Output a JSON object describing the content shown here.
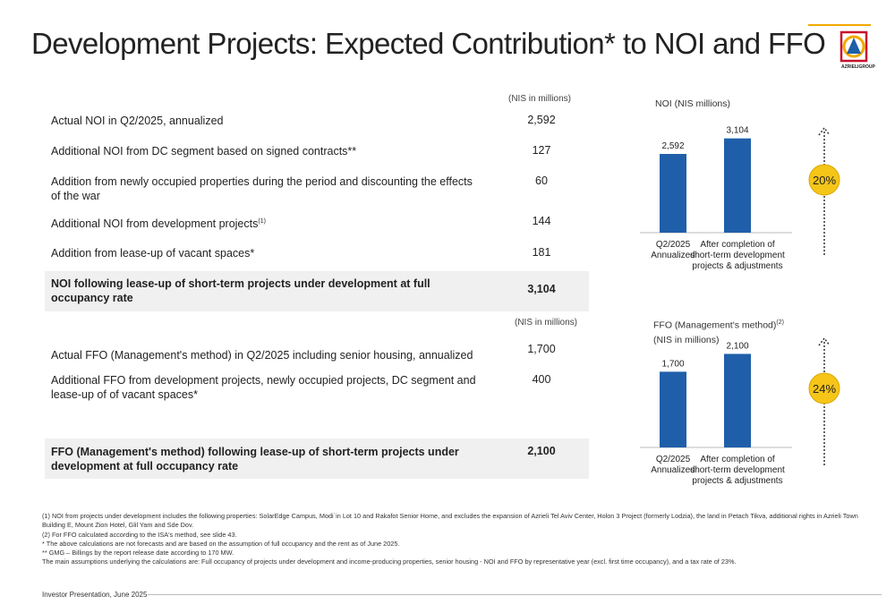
{
  "title": "Development Projects: Expected Contribution* to NOI and FFO",
  "logo_text": "AZRIELIGROUP",
  "noi_table": {
    "unit_header": "(NIS in millions)",
    "rows": [
      {
        "label": "Actual NOI in Q2/2025, annualized",
        "sup": "",
        "value": "2,592"
      },
      {
        "label": "Additional NOI from DC segment based on signed contracts**",
        "sup": "",
        "value": "127"
      },
      {
        "label": "Addition from newly occupied properties during the period and discounting the effects of the war",
        "sup": "",
        "value": "60"
      },
      {
        "label": "Additional NOI from development projects",
        "sup": "(1)",
        "value": "144"
      },
      {
        "label": "Addition from lease-up of vacant spaces*",
        "sup": "",
        "value": "181"
      }
    ],
    "total": {
      "label": "NOI following lease-up of short-term projects under development at full occupancy rate",
      "value": "3,104"
    }
  },
  "ffo_table": {
    "unit_header": "(NIS in millions)",
    "rows": [
      {
        "label": "Actual FFO (Management's method) in Q2/2025 including senior housing, annualized",
        "value": "1,700"
      },
      {
        "label": "Additional FFO from development projects, newly occupied projects, DC segment and lease-up of of vacant spaces*",
        "value": "400"
      }
    ],
    "total": {
      "label": "FFO (Management's method) following lease-up of short-term projects under development at full occupancy rate",
      "value": "2,100"
    }
  },
  "noi_chart_title": "NOI (NIS millions)",
  "ffo_chart_title_line1": "FFO (Management's method)",
  "ffo_chart_title_sup": "(2)",
  "ffo_chart_title_line2": "(NIS in millions)",
  "chart_data": [
    {
      "type": "bar",
      "title": "NOI (NIS millions)",
      "categories": [
        "Q2/2025 Annualized",
        "After completion of short-term development projects & adjustments"
      ],
      "values": [
        2592,
        3104
      ],
      "value_labels": [
        "2,592",
        "3,104"
      ],
      "ylim": [
        0,
        3300
      ],
      "bar_color": "#1f5fa9",
      "growth_label": "20%"
    },
    {
      "type": "bar",
      "title": "FFO (Management's method)(2) (NIS in millions)",
      "categories": [
        "Q2/2025 Annualized",
        "After completion of short-term development projects & adjustments"
      ],
      "values": [
        1700,
        2100
      ],
      "value_labels": [
        "1,700",
        "2,100"
      ],
      "ylim": [
        0,
        2250
      ],
      "bar_color": "#1f5fa9",
      "growth_label": "24%"
    }
  ],
  "footnotes": [
    "(1) NOI from projects under development includes the following properties: SolarEdge Campus,  Modi`in Lot 10 and Rakafot Senior Home, and excludes the expansion of Azrieli Tel Aviv Center, Holon 3 Project (formerly Lodzia), the land in Petach Tikva, additional rights in Azrieli Town Building  E, Mount Zion Hotel, Glil Yam and Sde Dov.",
    "(2) For FFO calculated according to the ISA's method, see slide 43.",
    "* The above calculations are not forecasts and are based on the assumption of full occupancy and the rent as of June 2025.",
    "** GMG – Billings by the report release date according to 170 MW.",
    "The main assumptions underlying the calculations are: Full occupancy of projects under development and income-producing properties, senior housing - NOI and FFO by representative year (excl. first time occupancy), and a tax rate of 23%."
  ],
  "footer": "Investor Presentation, June 2025",
  "colors": {
    "bar": "#1f5fa9",
    "badge": "#f5c518",
    "total_bg": "#f0f0f0",
    "logo_red": "#c8102e",
    "logo_gold": "#f2a900",
    "logo_blue": "#1f5fa9"
  }
}
